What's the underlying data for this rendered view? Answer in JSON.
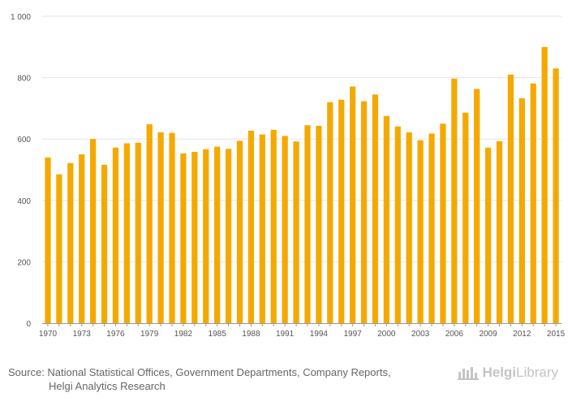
{
  "chart_data": {
    "type": "bar",
    "title": "",
    "xlabel": "",
    "ylabel": "",
    "ylim": [
      0,
      1000
    ],
    "yticks": [
      0,
      200,
      400,
      600,
      800,
      1000
    ],
    "ytick_labels": [
      "0",
      "200",
      "400",
      "600",
      "800",
      "1 000"
    ],
    "xtick_labels": [
      "1970",
      "1973",
      "1976",
      "1979",
      "1982",
      "1985",
      "1988",
      "1991",
      "1994",
      "1997",
      "2000",
      "2003",
      "2006",
      "2009",
      "2012",
      "2015"
    ],
    "bar_color": "#f5a900",
    "grid": true,
    "categories": [
      "1970",
      "1971",
      "1972",
      "1973",
      "1974",
      "1975",
      "1976",
      "1977",
      "1978",
      "1979",
      "1980",
      "1981",
      "1982",
      "1983",
      "1984",
      "1985",
      "1986",
      "1987",
      "1988",
      "1989",
      "1990",
      "1991",
      "1992",
      "1993",
      "1994",
      "1995",
      "1996",
      "1997",
      "1998",
      "1999",
      "2000",
      "2001",
      "2002",
      "2003",
      "2004",
      "2005",
      "2006",
      "2007",
      "2008",
      "2009",
      "2010",
      "2011",
      "2012",
      "2013",
      "2014",
      "2015"
    ],
    "values": [
      540,
      485,
      522,
      550,
      600,
      516,
      572,
      586,
      588,
      648,
      622,
      620,
      553,
      558,
      567,
      575,
      568,
      594,
      627,
      615,
      630,
      610,
      592,
      645,
      643,
      720,
      728,
      771,
      723,
      745,
      675,
      641,
      622,
      596,
      618,
      650,
      797,
      686,
      763,
      572,
      593,
      810,
      733,
      781,
      900,
      830
    ]
  },
  "footer": {
    "source_line1": "Source: National Statistical Offices, Government Departments, Company Reports,",
    "source_line2": "Helgi Analytics Research",
    "brand_bold": "Helgi",
    "brand_regular": "Library"
  },
  "colors": {
    "bar": "#f5a900",
    "grid": "#e6e6e6",
    "axis": "#999999",
    "brand": "#c4c4c4"
  }
}
